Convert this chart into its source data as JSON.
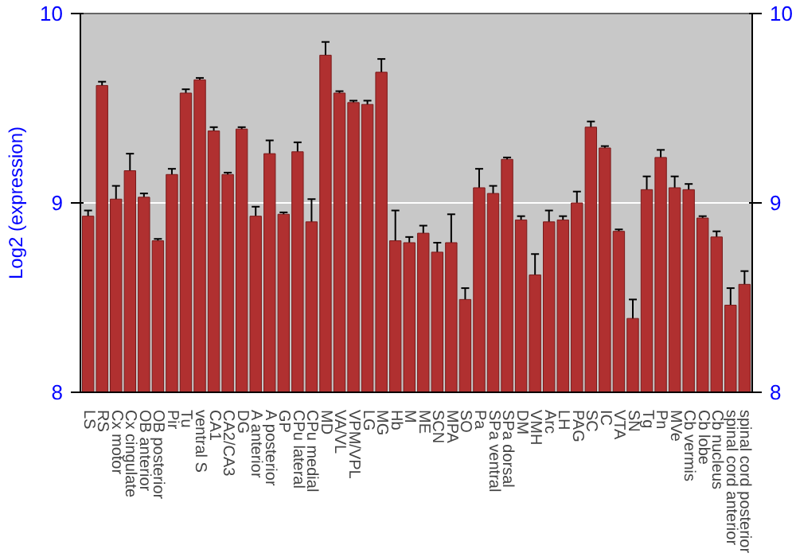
{
  "chart_data": {
    "type": "bar",
    "ylabel": "Log2 (expression)",
    "categories": [
      "LS",
      "RS",
      "Cx motor",
      "Cx cingulate",
      "OB anterior",
      "OB posterior",
      "Pir",
      "Tu",
      "ventral S",
      "CA1",
      "CA2/CA3",
      "DG",
      "A anterior",
      "A posterior",
      "GP",
      "CPu lateral",
      "CPu medial",
      "MD",
      "VA/VL",
      "VPM/VPL",
      "LG",
      "MG",
      "Hb",
      "M",
      "ME",
      "SCN",
      "MPA",
      "SO",
      "Pa",
      "SPa ventral",
      "SPa dorsal",
      "DM",
      "VMH",
      "Arc",
      "LH",
      "PAG",
      "SC",
      "IC",
      "VTA",
      "SN",
      "Tg",
      "Pn",
      "MVe",
      "Cb vermis",
      "Cb lobe",
      "Cb nucleus",
      "spinal cord anterior",
      "spinal cord posterior"
    ],
    "values": [
      8.93,
      9.62,
      9.02,
      9.17,
      9.03,
      8.8,
      9.15,
      9.58,
      9.65,
      9.38,
      9.15,
      9.39,
      8.93,
      9.26,
      8.94,
      9.27,
      8.9,
      9.78,
      9.58,
      9.53,
      9.52,
      9.69,
      8.8,
      8.79,
      8.84,
      8.74,
      8.79,
      8.49,
      9.08,
      9.05,
      9.23,
      8.91,
      8.62,
      8.9,
      8.91,
      9.0,
      9.4,
      9.29,
      8.85,
      8.39,
      9.07,
      9.24,
      9.08,
      9.07,
      8.92,
      8.82,
      8.46,
      8.57
    ],
    "errors": [
      0.03,
      0.02,
      0.07,
      0.09,
      0.02,
      0.01,
      0.03,
      0.02,
      0.01,
      0.02,
      0.01,
      0.01,
      0.05,
      0.07,
      0.01,
      0.05,
      0.12,
      0.07,
      0.01,
      0.01,
      0.02,
      0.07,
      0.16,
      0.03,
      0.04,
      0.05,
      0.15,
      0.06,
      0.1,
      0.04,
      0.01,
      0.02,
      0.11,
      0.06,
      0.02,
      0.06,
      0.03,
      0.01,
      0.01,
      0.1,
      0.07,
      0.04,
      0.06,
      0.03,
      0.01,
      0.03,
      0.09,
      0.07
    ],
    "color": "#b03030",
    "ylim": [
      8,
      10
    ],
    "yticks": [
      8,
      9,
      10
    ],
    "y2lim": [
      8,
      10
    ],
    "y2ticks": [
      8,
      9,
      10
    ],
    "grid": "y"
  }
}
